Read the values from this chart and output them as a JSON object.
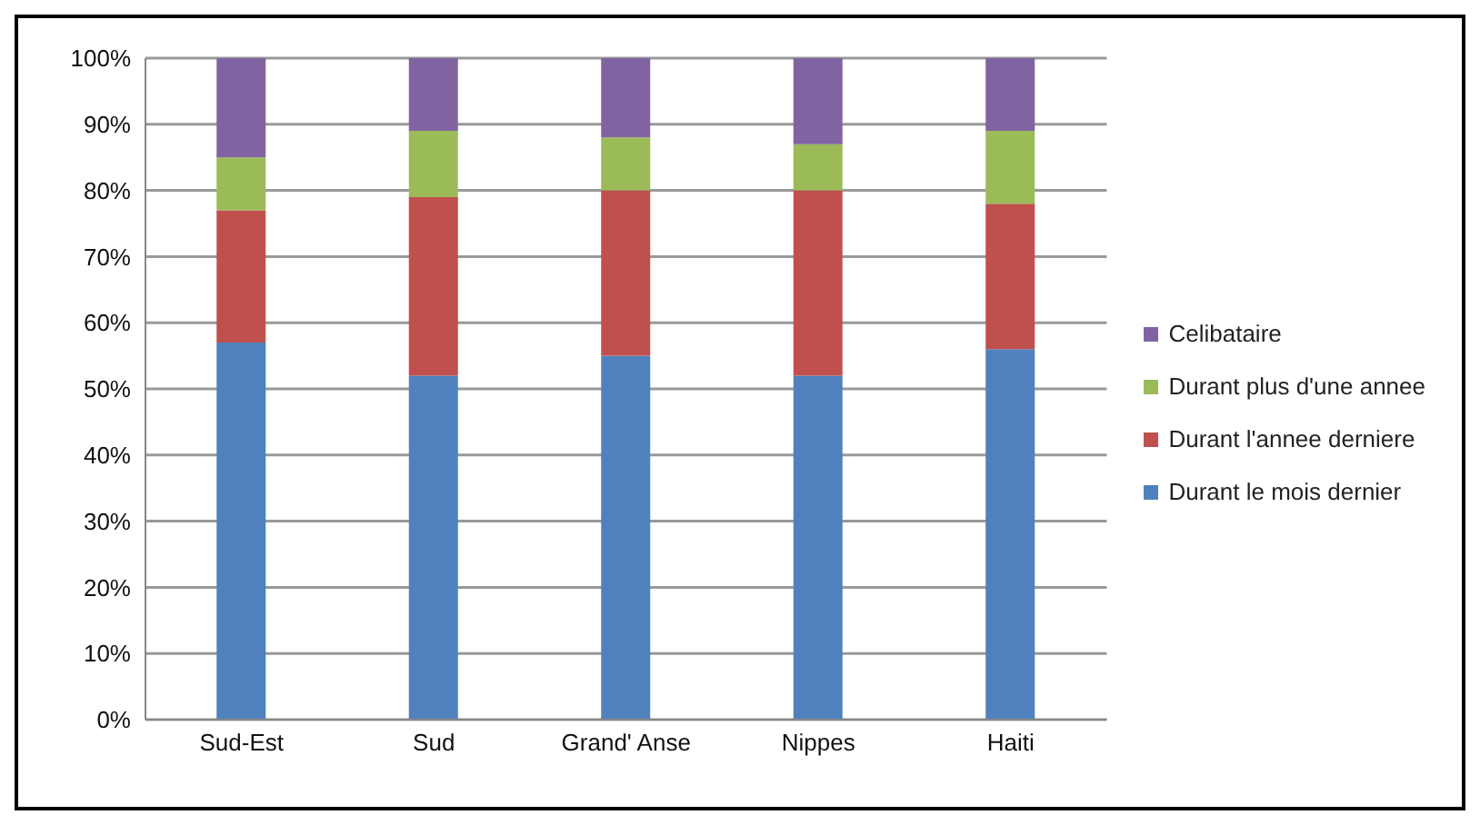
{
  "chart_data": {
    "type": "bar",
    "stacked": true,
    "categories": [
      "Sud-Est",
      "Sud",
      "Grand' Anse",
      "Nippes",
      "Haiti"
    ],
    "series": [
      {
        "name": "Durant le mois dernier",
        "color": "#4f81bd",
        "values": [
          57,
          52,
          55,
          52,
          56
        ]
      },
      {
        "name": "Durant l'annee derniere",
        "color": "#c0504d",
        "values": [
          20,
          27,
          25,
          28,
          22
        ]
      },
      {
        "name": "Durant plus d'une annee",
        "color": "#9bbb59",
        "values": [
          8,
          10,
          8,
          7,
          11
        ]
      },
      {
        "name": "Celibataire",
        "color": "#8064a2",
        "values": [
          15,
          11,
          12,
          13,
          11
        ]
      }
    ],
    "ylim": [
      0,
      100
    ],
    "yticks": [
      {
        "value": 0,
        "label": "0%"
      },
      {
        "value": 10,
        "label": "10%"
      },
      {
        "value": 20,
        "label": "20%"
      },
      {
        "value": 30,
        "label": "30%"
      },
      {
        "value": 40,
        "label": "40%"
      },
      {
        "value": 50,
        "label": "50%"
      },
      {
        "value": 60,
        "label": "60%"
      },
      {
        "value": 70,
        "label": "70%"
      },
      {
        "value": 80,
        "label": "80%"
      },
      {
        "value": 90,
        "label": "90%"
      },
      {
        "value": 100,
        "label": "100%"
      }
    ],
    "grid": "y",
    "legend": "right"
  }
}
